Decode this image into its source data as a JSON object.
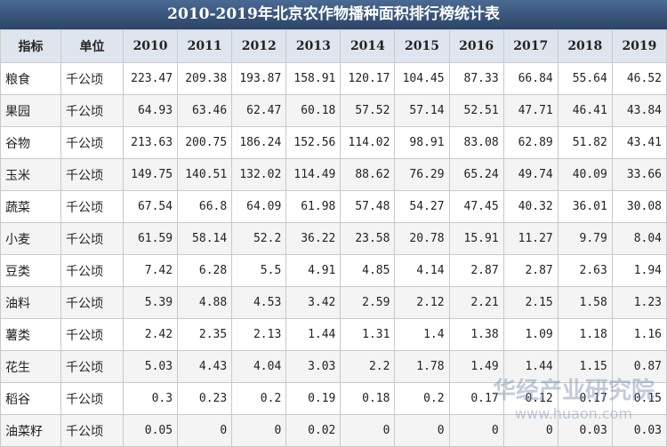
{
  "header": {
    "title": "2010-2019年北京农作物播种面积排行榜统计表"
  },
  "table": {
    "columns": [
      "指标",
      "单位",
      "2010",
      "2011",
      "2012",
      "2013",
      "2014",
      "2015",
      "2016",
      "2017",
      "2018",
      "2019"
    ],
    "rows": [
      [
        "粮食",
        "千公顷",
        223.47,
        209.38,
        193.87,
        158.91,
        120.17,
        104.45,
        87.33,
        66.84,
        55.64,
        46.52
      ],
      [
        "果园",
        "千公顷",
        64.93,
        63.46,
        62.47,
        60.18,
        57.52,
        57.14,
        52.51,
        47.71,
        46.41,
        43.84
      ],
      [
        "谷物",
        "千公顷",
        213.63,
        200.75,
        186.24,
        152.56,
        114.02,
        98.91,
        83.08,
        62.89,
        51.82,
        43.41
      ],
      [
        "玉米",
        "千公顷",
        149.75,
        140.51,
        132.02,
        114.49,
        88.62,
        76.29,
        65.24,
        49.74,
        40.09,
        33.66
      ],
      [
        "蔬菜",
        "千公顷",
        67.54,
        66.8,
        64.09,
        61.98,
        57.48,
        54.27,
        47.45,
        40.32,
        36.01,
        30.08
      ],
      [
        "小麦",
        "千公顷",
        61.59,
        58.14,
        52.2,
        36.22,
        23.58,
        20.78,
        15.91,
        11.27,
        9.79,
        8.04
      ],
      [
        "豆类",
        "千公顷",
        7.42,
        6.28,
        5.5,
        4.91,
        4.85,
        4.14,
        2.87,
        2.87,
        2.63,
        1.94
      ],
      [
        "油料",
        "千公顷",
        5.39,
        4.88,
        4.53,
        3.42,
        2.59,
        2.12,
        2.21,
        2.15,
        1.58,
        1.23
      ],
      [
        "薯类",
        "千公顷",
        2.42,
        2.35,
        2.13,
        1.44,
        1.31,
        1.4,
        1.38,
        1.09,
        1.18,
        1.16
      ],
      [
        "花生",
        "千公顷",
        5.03,
        4.43,
        4.04,
        3.03,
        2.2,
        1.78,
        1.49,
        1.44,
        1.15,
        0.87
      ],
      [
        "稻谷",
        "千公顷",
        0.3,
        0.23,
        0.2,
        0.19,
        0.18,
        0.2,
        0.17,
        0.12,
        0.17,
        0.15
      ],
      [
        "油菜籽",
        "千公顷",
        0.05,
        0,
        0,
        0.02,
        0,
        0,
        0,
        0,
        0.03,
        0.03
      ]
    ]
  },
  "watermark": {
    "name": "华经产业研究院",
    "url": "www.huaon.com"
  }
}
